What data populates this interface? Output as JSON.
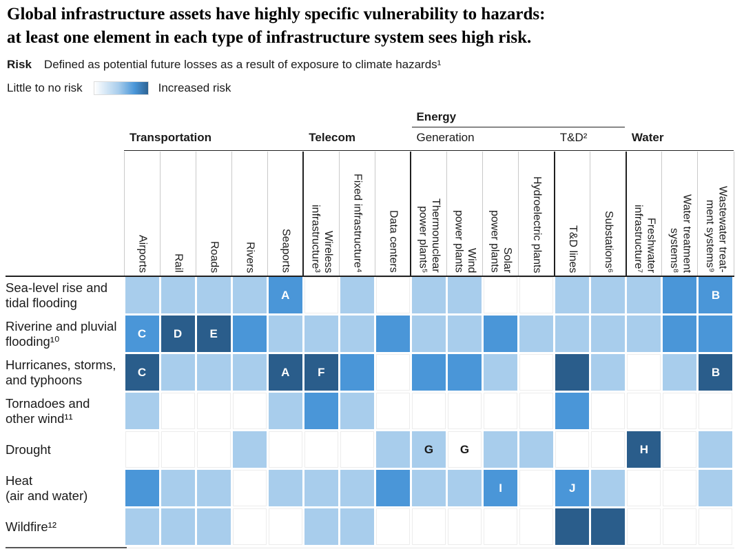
{
  "title": "Global infrastructure assets have highly specific vulnerability to hazards:\nat least one element in each type of infrastructure system sees high risk.",
  "risk_note": {
    "term": "Risk",
    "definition": "Defined as potential future losses as a result of exposure to climate hazards¹"
  },
  "legend": {
    "left_label": "Little to no risk",
    "right_label": "Increased risk",
    "gradient_stops": [
      "#ffffff",
      "#a8cdec",
      "#4a96d8",
      "#2d6394"
    ]
  },
  "colors": {
    "risk0": "#ffffff",
    "risk1": "#a8cdec",
    "risk2": "#4a96d8",
    "risk3": "#2a5d8b",
    "letter_on_dark": "#ffffff",
    "letter_on_light": "#1a1a1a",
    "rule_black": "#1f1f1f",
    "rule_gray": "#c9c9c9"
  },
  "chart_data": {
    "type": "heatmap",
    "title": "Global infrastructure assets have highly specific vulnerability to hazards: at least one element in each type of infrastructure system sees high risk.",
    "risk_definition": "Defined as potential future losses as a result of exposure to climate hazards¹",
    "scale": {
      "min_label": "Little to no risk",
      "max_label": "Increased risk",
      "levels": [
        "none",
        "low",
        "medium",
        "high"
      ]
    },
    "column_groups": [
      {
        "label": "Transportation",
        "bold": true,
        "super": false,
        "col_start": 0,
        "col_end": 4
      },
      {
        "label": "Telecom",
        "bold": true,
        "super": false,
        "col_start": 5,
        "col_end": 7
      },
      {
        "label": "Energy",
        "bold": true,
        "super": true,
        "col_start": 8,
        "col_end": 13
      },
      {
        "label": "Generation",
        "bold": false,
        "super": false,
        "col_start": 8,
        "col_end": 11
      },
      {
        "label": "T&D²",
        "bold": false,
        "super": false,
        "col_start": 12,
        "col_end": 13
      },
      {
        "label": "Water",
        "bold": true,
        "super": false,
        "col_start": 14,
        "col_end": 16
      }
    ],
    "group_boundary_cols": [
      5,
      8,
      12,
      14
    ],
    "columns": [
      "Airports",
      "Rail",
      "Roads",
      "Rivers",
      "Seaports",
      "Wireless\ninfrastructure³",
      "Fixed infrastructure⁴",
      "Data centers",
      "Thermonuclear\npower plants⁵",
      "Wind\npower plants",
      "Solar\npower plants",
      "Hydroelectric plants",
      "T&D lines",
      "Substations⁶",
      "Freshwater\ninfrastructure⁷",
      "Water treatment\nsystems⁸",
      "Wastewater treat-\nment systems⁹"
    ],
    "rows": [
      "Sea-level rise and\ntidal flooding",
      "Riverine and pluvial\nflooding¹⁰",
      "Hurricanes, storms,\nand typhoons",
      "Tornadoes and\nother wind¹¹",
      "Drought",
      "Heat\n(air and water)",
      "Wildfire¹²"
    ],
    "cells": [
      [
        1,
        1,
        1,
        1,
        2,
        0,
        1,
        0,
        1,
        1,
        0,
        0,
        1,
        1,
        1,
        2,
        2
      ],
      [
        2,
        3,
        3,
        2,
        1,
        1,
        1,
        2,
        1,
        1,
        2,
        1,
        1,
        1,
        1,
        2,
        2
      ],
      [
        3,
        1,
        1,
        1,
        3,
        3,
        2,
        0,
        2,
        2,
        1,
        0,
        3,
        1,
        0,
        1,
        3
      ],
      [
        1,
        0,
        0,
        0,
        1,
        2,
        1,
        0,
        0,
        0,
        0,
        0,
        2,
        0,
        0,
        0,
        0
      ],
      [
        0,
        0,
        0,
        1,
        0,
        0,
        0,
        1,
        1,
        0,
        1,
        1,
        0,
        0,
        3,
        0,
        1
      ],
      [
        2,
        1,
        1,
        0,
        1,
        1,
        1,
        2,
        1,
        1,
        2,
        0,
        2,
        1,
        0,
        0,
        1
      ],
      [
        1,
        1,
        1,
        0,
        0,
        1,
        1,
        0,
        0,
        0,
        0,
        0,
        3,
        3,
        0,
        0,
        0
      ]
    ],
    "letters": [
      {
        "row": 0,
        "col": 4,
        "letter": "A"
      },
      {
        "row": 0,
        "col": 16,
        "letter": "B"
      },
      {
        "row": 1,
        "col": 0,
        "letter": "C"
      },
      {
        "row": 1,
        "col": 1,
        "letter": "D"
      },
      {
        "row": 1,
        "col": 2,
        "letter": "E"
      },
      {
        "row": 2,
        "col": 0,
        "letter": "C"
      },
      {
        "row": 2,
        "col": 4,
        "letter": "A"
      },
      {
        "row": 2,
        "col": 5,
        "letter": "F"
      },
      {
        "row": 2,
        "col": 16,
        "letter": "B"
      },
      {
        "row": 4,
        "col": 8,
        "letter": "G"
      },
      {
        "row": 4,
        "col": 9,
        "letter": "G"
      },
      {
        "row": 4,
        "col": 14,
        "letter": "H"
      },
      {
        "row": 5,
        "col": 10,
        "letter": "I"
      },
      {
        "row": 5,
        "col": 12,
        "letter": "J"
      },
      {
        "row": 6,
        "col": 12,
        "letter": ""
      }
    ]
  }
}
